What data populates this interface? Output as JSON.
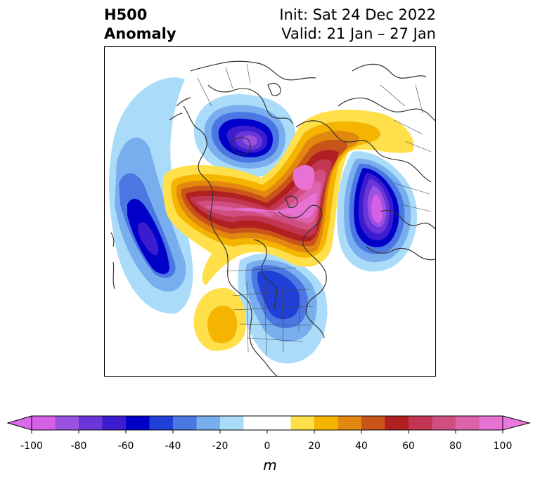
{
  "title": {
    "left_line1": "H500",
    "left_line2": "Anomaly",
    "right_line1": "Init: Sat 24 Dec 2022",
    "right_line2": "Valid: 21 Jan – 27 Jan"
  },
  "colorbar": {
    "unit": "m",
    "extend": "both",
    "levels": [
      -100,
      -90,
      -80,
      -70,
      -60,
      -50,
      -40,
      -30,
      -20,
      -10,
      10,
      20,
      30,
      40,
      50,
      60,
      70,
      80,
      90,
      100
    ],
    "colors": [
      "#d65fe8",
      "#9b52e0",
      "#6a36d9",
      "#3b1ccf",
      "#0000c8",
      "#1f3fd6",
      "#4b77e3",
      "#78aeee",
      "#aadcf9",
      "#ffffff",
      "#ffe04a",
      "#f4b400",
      "#e2870f",
      "#c9541a",
      "#b02020",
      "#c23653",
      "#d04f80",
      "#dc62aa",
      "#e872d3"
    ],
    "under_color": "#d86ce8",
    "over_color": "#ea79de",
    "tick_labels": [
      "-100",
      "-80",
      "-60",
      "-40",
      "-20",
      "0",
      "20",
      "40",
      "60",
      "80",
      "100"
    ]
  },
  "map": {
    "projection": "north-polar-stereographic",
    "coastline_color": "#333333",
    "features": [
      {
        "name": "negative-anomaly-pacific",
        "sign": "negative",
        "peak_m": -90
      },
      {
        "name": "negative-anomaly-hudson-bay",
        "sign": "negative",
        "peak_m": -90
      },
      {
        "name": "negative-anomaly-siberia",
        "sign": "negative",
        "peak_m": -90
      },
      {
        "name": "negative-anomaly-eastern-us",
        "sign": "negative",
        "peak_m": -60
      },
      {
        "name": "positive-anomaly-arctic-ridge",
        "sign": "positive",
        "peak_m": 100
      },
      {
        "name": "positive-anomaly-western-us",
        "sign": "positive",
        "peak_m": 20
      }
    ]
  }
}
